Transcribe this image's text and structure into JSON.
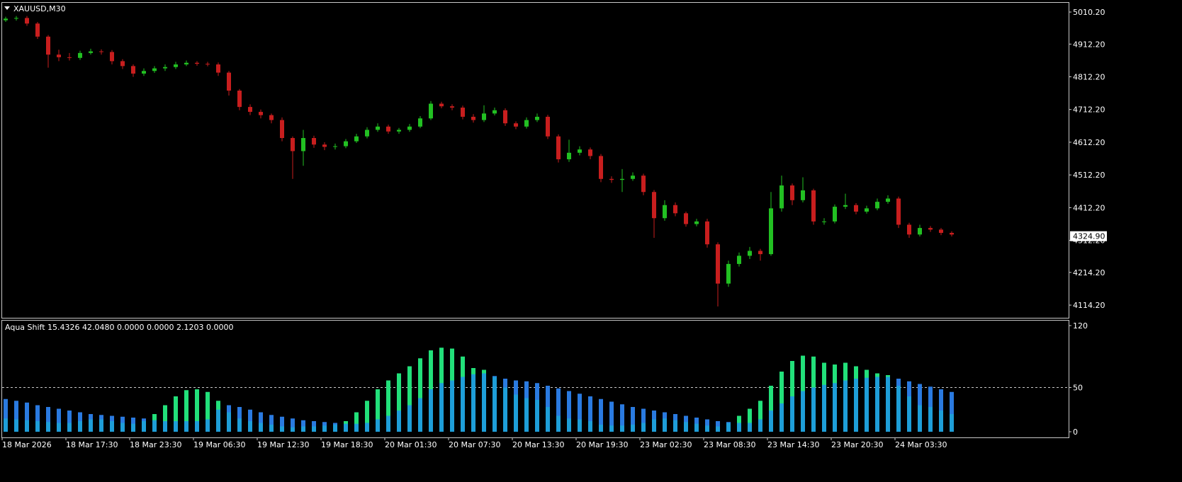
{
  "chart_data": [
    {
      "type": "candlestick",
      "title": "XAUUSD,M30",
      "open": [
        4985,
        4990,
        4992,
        4975,
        4935,
        4880,
        4872,
        4870,
        4885,
        4890,
        4888,
        4860,
        4845,
        4822,
        4830,
        4838,
        4842,
        4850,
        4855,
        4852,
        4850,
        4825,
        4770,
        4720,
        4705,
        4695,
        4680,
        4625,
        4585,
        4625,
        4605,
        4598,
        4600,
        4615,
        4630,
        4650,
        4660,
        4645,
        4650,
        4660,
        4685,
        4730,
        4722,
        4718,
        4690,
        4680,
        4700,
        4710,
        4670,
        4660,
        4680,
        4690,
        4630,
        4560,
        4580,
        4590,
        4570,
        4500,
        4497,
        4500,
        4510,
        4460,
        4380,
        4420,
        4395,
        4362,
        4370,
        4300,
        4180,
        4240,
        4265,
        4280,
        4270,
        4410,
        4480,
        4435,
        4465,
        4370,
        4370,
        4415,
        4420,
        4400,
        4410,
        4430,
        4440,
        4360,
        4330,
        4350,
        4345,
        4335
      ],
      "high": [
        4996,
        4998,
        4998,
        4980,
        4940,
        4895,
        4885,
        4892,
        4898,
        4896,
        4894,
        4866,
        4850,
        4838,
        4845,
        4850,
        4858,
        4862,
        4860,
        4858,
        4856,
        4830,
        4775,
        4728,
        4712,
        4700,
        4688,
        4630,
        4650,
        4632,
        4612,
        4608,
        4622,
        4638,
        4658,
        4670,
        4666,
        4656,
        4668,
        4692,
        4738,
        4736,
        4728,
        4724,
        4698,
        4725,
        4718,
        4716,
        4676,
        4688,
        4700,
        4696,
        4636,
        4620,
        4600,
        4596,
        4576,
        4508,
        4530,
        4520,
        4516,
        4466,
        4435,
        4428,
        4400,
        4378,
        4378,
        4306,
        4250,
        4275,
        4292,
        4286,
        4460,
        4510,
        4486,
        4505,
        4470,
        4380,
        4422,
        4455,
        4426,
        4418,
        4440,
        4450,
        4446,
        4366,
        4360,
        4356,
        4350,
        4340
      ],
      "low": [
        4980,
        4984,
        4968,
        4928,
        4840,
        4860,
        4862,
        4864,
        4880,
        4880,
        4850,
        4836,
        4812,
        4815,
        4824,
        4830,
        4836,
        4845,
        4846,
        4844,
        4815,
        4755,
        4710,
        4695,
        4685,
        4670,
        4615,
        4500,
        4540,
        4595,
        4588,
        4590,
        4594,
        4610,
        4624,
        4644,
        4638,
        4638,
        4644,
        4655,
        4680,
        4716,
        4710,
        4682,
        4672,
        4674,
        4694,
        4662,
        4652,
        4654,
        4674,
        4622,
        4550,
        4552,
        4572,
        4560,
        4490,
        4488,
        4460,
        4494,
        4450,
        4320,
        4372,
        4386,
        4354,
        4355,
        4290,
        4110,
        4170,
        4232,
        4255,
        4250,
        4265,
        4400,
        4420,
        4428,
        4360,
        4360,
        4364,
        4408,
        4392,
        4394,
        4404,
        4424,
        4350,
        4320,
        4324,
        4338,
        4328,
        4324
      ],
      "close": [
        4990,
        4992,
        4975,
        4935,
        4880,
        4872,
        4870,
        4885,
        4890,
        4888,
        4860,
        4845,
        4822,
        4830,
        4838,
        4842,
        4850,
        4855,
        4852,
        4850,
        4825,
        4770,
        4720,
        4705,
        4695,
        4680,
        4625,
        4585,
        4625,
        4605,
        4598,
        4600,
        4615,
        4630,
        4650,
        4660,
        4645,
        4650,
        4660,
        4685,
        4730,
        4722,
        4718,
        4690,
        4680,
        4700,
        4710,
        4670,
        4660,
        4680,
        4690,
        4630,
        4560,
        4580,
        4590,
        4570,
        4500,
        4497,
        4500,
        4510,
        4460,
        4380,
        4420,
        4395,
        4362,
        4370,
        4300,
        4180,
        4240,
        4265,
        4280,
        4270,
        4410,
        4480,
        4435,
        4465,
        4370,
        4370,
        4415,
        4420,
        4400,
        4410,
        4430,
        4440,
        4360,
        4330,
        4350,
        4345,
        4335,
        4330
      ],
      "up_color": "#22c022",
      "down_color": "#c81e1e",
      "ylim": [
        4075.4,
        5040.5
      ],
      "yticks": [
        {
          "value": 5010.2,
          "label": "5010.20"
        },
        {
          "value": 4912.2,
          "label": "4912.20"
        },
        {
          "value": 4812.2,
          "label": "4812.20"
        },
        {
          "value": 4712.2,
          "label": "4712.20"
        },
        {
          "value": 4612.2,
          "label": "4612.20"
        },
        {
          "value": 4512.2,
          "label": "4512.20"
        },
        {
          "value": 4412.2,
          "label": "4412.20"
        },
        {
          "value": 4312.2,
          "label": "4312.20"
        },
        {
          "value": 4214.2,
          "label": "4214.20"
        },
        {
          "value": 4114.2,
          "label": "4114.20"
        }
      ],
      "last_price": {
        "value": 4324.9,
        "label": "4324.90"
      },
      "x_labels": [
        "18 Mar 2026",
        "18 Mar 17:30",
        "18 Mar 23:30",
        "19 Mar 06:30",
        "19 Mar 12:30",
        "19 Mar 18:30",
        "20 Mar 01:30",
        "20 Mar 07:30",
        "20 Mar 13:30",
        "20 Mar 19:30",
        "23 Mar 02:30",
        "23 Mar 08:30",
        "23 Mar 14:30",
        "23 Mar 20:30",
        "24 Mar 03:30"
      ]
    },
    {
      "type": "histogram",
      "title": "Aqua Shift 15.4326 42.0480 0.0000 0.0000 2.1203 0.0000",
      "overlap_color": "#1e9ed8",
      "series": [
        {
          "color": "#22e07a",
          "values": [
            15,
            14,
            13,
            12,
            11,
            10,
            10,
            12,
            14,
            14,
            12,
            10,
            9,
            12,
            20,
            30,
            40,
            47,
            48,
            45,
            35,
            22,
            15,
            12,
            10,
            8,
            6,
            5,
            6,
            6,
            7,
            8,
            12,
            22,
            35,
            48,
            58,
            66,
            74,
            83,
            92,
            95,
            94,
            85,
            72,
            70,
            62,
            50,
            42,
            38,
            36,
            28,
            18,
            15,
            14,
            12,
            8,
            7,
            7,
            8,
            10,
            14,
            15,
            13,
            11,
            9,
            7,
            6,
            10,
            18,
            26,
            35,
            52,
            68,
            80,
            86,
            85,
            78,
            76,
            78,
            74,
            70,
            66,
            64,
            52,
            40,
            30,
            28,
            24,
            20
          ]
        },
        {
          "color": "#2a7ae0",
          "values": [
            37,
            35,
            33,
            30,
            28,
            26,
            24,
            22,
            20,
            19,
            18,
            17,
            16,
            15,
            13,
            12,
            12,
            12,
            12,
            14,
            25,
            30,
            28,
            25,
            22,
            19,
            17,
            15,
            13,
            12,
            11,
            10,
            9,
            9,
            10,
            14,
            18,
            24,
            30,
            38,
            48,
            55,
            58,
            62,
            65,
            66,
            63,
            60,
            58,
            57,
            55,
            52,
            49,
            46,
            43,
            40,
            37,
            34,
            31,
            28,
            26,
            24,
            22,
            20,
            18,
            16,
            14,
            12,
            11,
            10,
            10,
            14,
            24,
            32,
            40,
            46,
            50,
            53,
            55,
            58,
            60,
            61,
            62,
            62,
            60,
            57,
            54,
            51,
            48,
            45
          ]
        }
      ],
      "ylim": [
        -6.4,
        126.4
      ],
      "yticks": [
        120,
        50,
        0
      ],
      "levels": [
        50
      ]
    }
  ]
}
